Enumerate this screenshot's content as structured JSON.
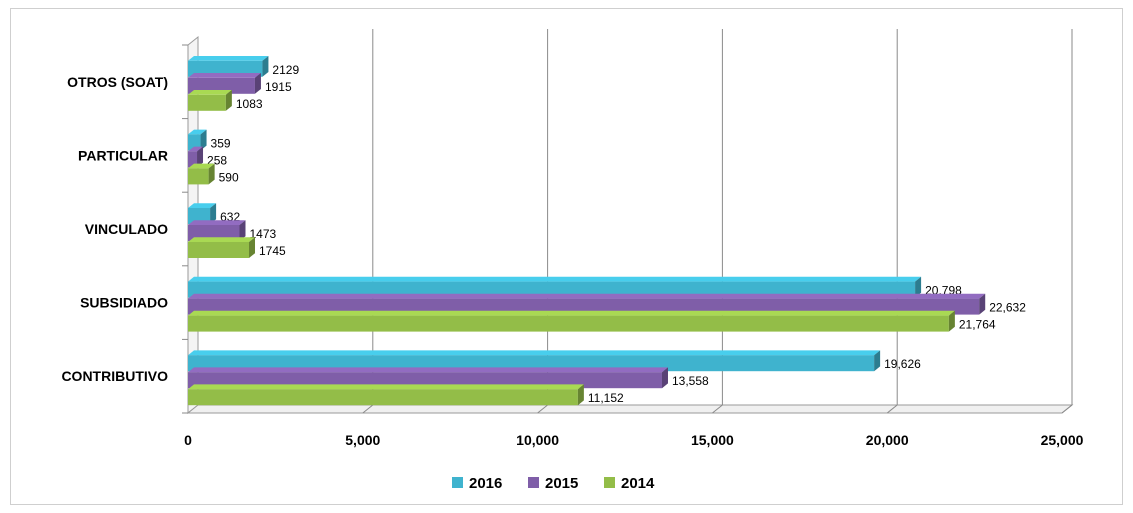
{
  "chart_data": {
    "type": "bar",
    "orientation": "horizontal",
    "title": "",
    "xlabel": "",
    "ylabel": "",
    "categories": [
      "CONTRIBUTIVO",
      "SUBSIDIADO",
      "VINCULADO",
      "PARTICULAR",
      "OTROS (SOAT)"
    ],
    "series": [
      {
        "name": "2016",
        "color": "#3fb3ce",
        "values": [
          19626,
          20798,
          632,
          359,
          2129
        ],
        "labels": [
          "19,626",
          "20,798",
          "632",
          "359",
          "2129"
        ]
      },
      {
        "name": "2015",
        "color": "#7f5ea8",
        "values": [
          13558,
          22632,
          1473,
          258,
          1915
        ],
        "labels": [
          "13,558",
          "22,632",
          "1473",
          "258",
          "1915"
        ]
      },
      {
        "name": "2014",
        "color": "#93bd48",
        "values": [
          11152,
          21764,
          1745,
          590,
          1083
        ],
        "labels": [
          "11,152",
          "21,764",
          "1745",
          "590",
          "1083"
        ]
      }
    ],
    "xlim": [
      0,
      25000
    ],
    "ticks": [
      0,
      5000,
      10000,
      15000,
      20000,
      25000
    ],
    "tick_labels": [
      "0",
      "5,000",
      "10,000",
      "15,000",
      "20,000",
      "25,000"
    ],
    "grid": true,
    "legend_position": "bottom"
  }
}
